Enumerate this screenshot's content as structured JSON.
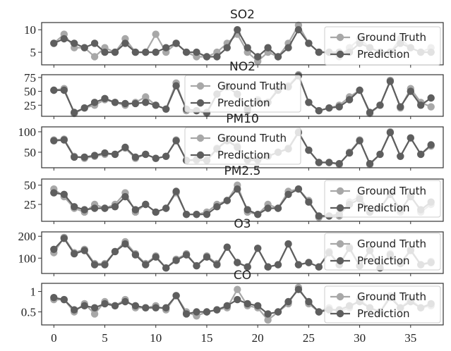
{
  "chart_data": [
    {
      "type": "line",
      "title": "SO2",
      "x": [
        0,
        1,
        2,
        3,
        4,
        5,
        6,
        7,
        8,
        9,
        10,
        11,
        12,
        13,
        14,
        15,
        16,
        17,
        18,
        19,
        20,
        21,
        22,
        23,
        24,
        25,
        26,
        27,
        28,
        29,
        30,
        31,
        32,
        33,
        34,
        35,
        36,
        37
      ],
      "series": [
        {
          "name": "Ground Truth",
          "values": [
            7,
            9,
            6,
            6,
            4,
            6,
            5,
            8,
            5,
            5,
            9,
            5,
            7,
            5,
            4,
            4,
            5,
            7,
            9,
            5,
            3,
            5,
            4,
            7,
            11,
            7,
            5,
            5,
            4,
            6,
            8,
            6,
            5,
            5,
            8,
            6,
            5,
            6
          ]
        },
        {
          "name": "Prediction",
          "values": [
            7,
            8,
            7,
            6,
            7,
            5,
            5,
            7,
            5,
            5,
            5,
            6,
            7,
            5,
            5,
            4,
            4,
            6,
            10,
            6,
            4,
            6,
            4,
            6,
            10,
            7,
            5,
            5,
            5,
            5,
            7,
            6,
            5,
            5,
            7,
            6,
            5,
            5
          ]
        }
      ],
      "yticks": [
        5,
        10
      ],
      "ylim": [
        2.2,
        11.6
      ],
      "xlim": [
        -1.2,
        38.2
      ],
      "legend_position": "upper right"
    },
    {
      "type": "line",
      "title": "NO2",
      "x": [
        0,
        1,
        2,
        3,
        4,
        5,
        6,
        7,
        8,
        9,
        10,
        11,
        12,
        13,
        14,
        15,
        16,
        17,
        18,
        19,
        20,
        21,
        22,
        23,
        24,
        25,
        26,
        27,
        28,
        29,
        30,
        31,
        32,
        33,
        34,
        35,
        36,
        37
      ],
      "series": [
        {
          "name": "Ground Truth",
          "values": [
            52,
            55,
            10,
            20,
            25,
            35,
            30,
            25,
            30,
            40,
            25,
            18,
            65,
            15,
            15,
            10,
            45,
            60,
            45,
            15,
            35,
            30,
            55,
            60,
            80,
            30,
            15,
            20,
            25,
            40,
            52,
            10,
            25,
            70,
            20,
            55,
            30,
            22
          ]
        },
        {
          "name": "Prediction",
          "values": [
            52,
            52,
            12,
            20,
            30,
            37,
            30,
            28,
            28,
            30,
            25,
            18,
            60,
            18,
            15,
            12,
            45,
            58,
            45,
            18,
            32,
            30,
            52,
            58,
            78,
            30,
            15,
            20,
            22,
            35,
            52,
            12,
            25,
            68,
            22,
            50,
            25,
            38
          ]
        }
      ],
      "yticks": [
        25,
        50,
        75
      ],
      "ylim": [
        5,
        80
      ],
      "xlim": [
        -1.2,
        38.2
      ],
      "legend_position": "upper center"
    },
    {
      "type": "line",
      "title": "PM10",
      "x": [
        0,
        1,
        2,
        3,
        4,
        5,
        6,
        7,
        8,
        9,
        10,
        11,
        12,
        13,
        14,
        15,
        16,
        17,
        18,
        19,
        20,
        21,
        22,
        23,
        24,
        25,
        26,
        27,
        28,
        29,
        30,
        31,
        32,
        33,
        34,
        35,
        36,
        37
      ],
      "series": [
        {
          "name": "Ground Truth",
          "values": [
            80,
            82,
            40,
            35,
            40,
            45,
            45,
            60,
            35,
            45,
            35,
            40,
            80,
            30,
            30,
            30,
            60,
            80,
            65,
            30,
            30,
            40,
            50,
            60,
            100,
            55,
            25,
            25,
            20,
            50,
            80,
            20,
            45,
            100,
            40,
            85,
            45,
            65
          ]
        },
        {
          "name": "Prediction",
          "values": [
            78,
            80,
            38,
            38,
            42,
            48,
            45,
            62,
            38,
            45,
            35,
            40,
            78,
            30,
            32,
            30,
            58,
            78,
            62,
            32,
            32,
            40,
            50,
            58,
            98,
            55,
            25,
            25,
            22,
            48,
            78,
            22,
            45,
            98,
            40,
            85,
            45,
            68
          ]
        }
      ],
      "yticks": [
        50,
        100
      ],
      "ylim": [
        12,
        112
      ],
      "xlim": [
        -1.2,
        38.2
      ],
      "legend_position": "upper center"
    },
    {
      "type": "line",
      "title": "PM2.5",
      "x": [
        0,
        1,
        2,
        3,
        4,
        5,
        6,
        7,
        8,
        9,
        10,
        11,
        12,
        13,
        14,
        15,
        16,
        17,
        18,
        19,
        20,
        21,
        22,
        23,
        24,
        25,
        26,
        27,
        28,
        29,
        30,
        31,
        32,
        33,
        34,
        35,
        36,
        37
      ],
      "series": [
        {
          "name": "Ground Truth",
          "values": [
            45,
            35,
            20,
            15,
            25,
            20,
            25,
            40,
            15,
            25,
            15,
            20,
            40,
            12,
            12,
            15,
            25,
            30,
            50,
            15,
            12,
            25,
            20,
            42,
            45,
            30,
            8,
            10,
            10,
            28,
            35,
            15,
            20,
            40,
            15,
            38,
            15,
            25
          ]
        },
        {
          "name": "Prediction",
          "values": [
            40,
            38,
            22,
            18,
            20,
            20,
            22,
            35,
            18,
            25,
            15,
            20,
            42,
            12,
            12,
            12,
            22,
            30,
            45,
            18,
            12,
            20,
            20,
            38,
            45,
            28,
            10,
            10,
            12,
            25,
            32,
            15,
            20,
            38,
            18,
            35,
            18,
            28
          ]
        }
      ],
      "yticks": [
        25,
        50
      ],
      "ylim": [
        3,
        58
      ],
      "xlim": [
        -1.2,
        38.2
      ],
      "legend_position": "upper right"
    },
    {
      "type": "line",
      "title": "O3",
      "x": [
        0,
        1,
        2,
        3,
        4,
        5,
        6,
        7,
        8,
        9,
        10,
        11,
        12,
        13,
        14,
        15,
        16,
        17,
        18,
        19,
        20,
        21,
        22,
        23,
        24,
        25,
        26,
        27,
        28,
        29,
        30,
        31,
        32,
        33,
        34,
        35,
        36,
        37
      ],
      "series": [
        {
          "name": "Ground Truth",
          "values": [
            125,
            195,
            125,
            140,
            75,
            75,
            130,
            175,
            120,
            75,
            110,
            55,
            95,
            120,
            65,
            110,
            75,
            150,
            80,
            60,
            145,
            60,
            70,
            165,
            70,
            80,
            60,
            130,
            70,
            150,
            65,
            140,
            55,
            120,
            75,
            140,
            70,
            85
          ]
        },
        {
          "name": "Prediction",
          "values": [
            140,
            190,
            120,
            135,
            70,
            70,
            130,
            165,
            115,
            70,
            105,
            55,
            90,
            115,
            65,
            105,
            70,
            150,
            80,
            60,
            145,
            60,
            70,
            165,
            70,
            80,
            60,
            125,
            70,
            145,
            65,
            135,
            55,
            115,
            75,
            135,
            70,
            80
          ]
        }
      ],
      "yticks": [
        100,
        200
      ],
      "ylim": [
        30,
        220
      ],
      "xlim": [
        -1.2,
        38.2
      ],
      "legend_position": "upper right"
    },
    {
      "type": "line",
      "title": "CO",
      "x": [
        0,
        1,
        2,
        3,
        4,
        5,
        6,
        7,
        8,
        9,
        10,
        11,
        12,
        13,
        14,
        15,
        16,
        17,
        18,
        19,
        20,
        21,
        22,
        23,
        24,
        25,
        26,
        27,
        28,
        29,
        30,
        31,
        32,
        33,
        34,
        35,
        36,
        37
      ],
      "series": [
        {
          "name": "Ground Truth",
          "values": [
            0.8,
            0.8,
            0.5,
            0.7,
            0.45,
            0.75,
            0.65,
            0.8,
            0.6,
            0.6,
            0.65,
            0.55,
            0.9,
            0.5,
            0.4,
            0.5,
            0.55,
            0.6,
            1.05,
            0.65,
            0.6,
            0.3,
            0.5,
            0.7,
            1.1,
            0.7,
            0.5,
            0.6,
            0.5,
            0.6,
            0.8,
            0.6,
            0.5,
            0.9,
            0.6,
            0.8,
            0.6,
            0.65
          ]
        },
        {
          "name": "Prediction",
          "values": [
            0.85,
            0.8,
            0.55,
            0.65,
            0.6,
            0.7,
            0.65,
            0.75,
            0.65,
            0.6,
            0.6,
            0.6,
            0.9,
            0.45,
            0.5,
            0.5,
            0.55,
            0.65,
            0.8,
            0.7,
            0.65,
            0.45,
            0.5,
            0.75,
            1.05,
            0.75,
            0.5,
            0.55,
            0.55,
            0.65,
            0.75,
            0.6,
            0.5,
            0.85,
            0.6,
            0.75,
            0.6,
            0.7
          ]
        }
      ],
      "yticks": [
        0.5,
        1.0
      ],
      "ylim": [
        0.18,
        1.2
      ],
      "xlim": [
        -1.2,
        38.2
      ],
      "legend_position": "upper right"
    }
  ],
  "x_axis": {
    "ticks": [
      0,
      5,
      10,
      15,
      20,
      25,
      30,
      35
    ]
  },
  "colors": {
    "ground_truth": "#a8a8a8",
    "prediction": "#5e5e5e"
  }
}
